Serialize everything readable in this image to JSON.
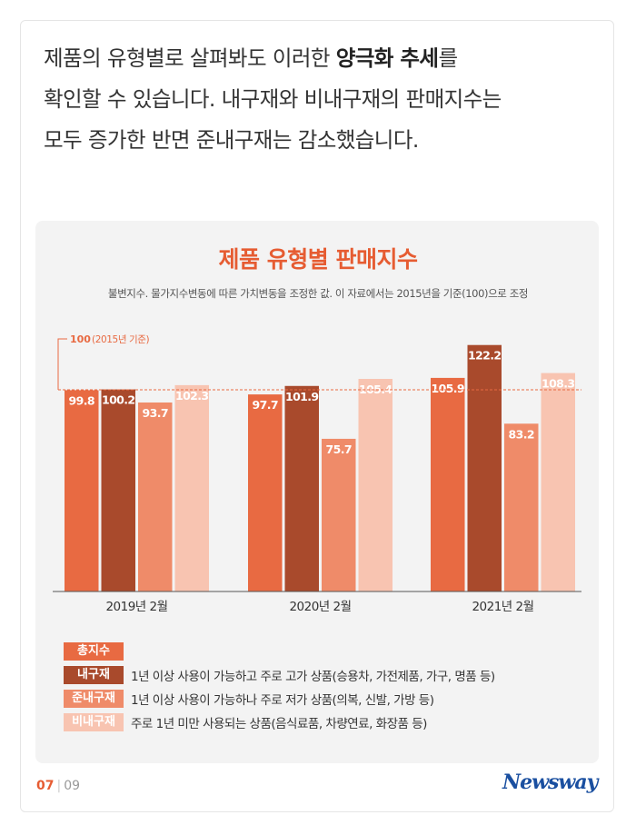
{
  "intro": {
    "line1_pre": "제품의 유형별로 살펴봐도 이러한 ",
    "line1_bold": "양극화 추세",
    "line1_post": "를",
    "line2": "확인할 수 있습니다. 내구재와 비내구재의 판매지수는",
    "line3": "모두 증가한 반면 준내구재는 감소했습니다."
  },
  "chart_data": {
    "type": "bar",
    "title": "제품 유형별 판매지수",
    "subtitle": "불변지수. 물가지수변동에 따른 가치변동을 조정한 값. 이 자료에서는 2015년을 기준(100)으로 조정",
    "categories": [
      "2019년 2월",
      "2020년 2월",
      "2021년 2월"
    ],
    "series": [
      {
        "name": "총지수",
        "color": "#e86a42",
        "values": [
          99.8,
          97.7,
          105.9
        ],
        "labels": [
          "99.8",
          "97.7",
          "105.9"
        ]
      },
      {
        "name": "내구재",
        "color": "#a94a2c",
        "values": [
          100.2,
          101.9,
          122.2
        ],
        "labels": [
          "100.2",
          "101.9",
          "122.2"
        ]
      },
      {
        "name": "준내구재",
        "color": "#ef8b69",
        "values": [
          93.7,
          75.7,
          83.2
        ],
        "labels": [
          "93.7",
          "75.7",
          "83.2"
        ]
      },
      {
        "name": "비내구재",
        "color": "#f8c4b1",
        "values": [
          102.3,
          105.4,
          108.3
        ],
        "labels": [
          "102.3",
          "105.4",
          "108.3"
        ]
      }
    ],
    "reference": {
      "value": 100,
      "label": "100",
      "note": "(2015년 기준)",
      "color": "#e86a42"
    },
    "ylim": [
      0,
      130
    ],
    "grid": false,
    "legend": "bottom-left"
  },
  "legend": [
    {
      "name": "총지수",
      "color": "#e86a42",
      "desc": ""
    },
    {
      "name": "내구재",
      "color": "#a94a2c",
      "desc": "1년 이상 사용이 가능하고 주로 고가 상품(승용차, 가전제품, 가구, 명품 등)"
    },
    {
      "name": "준내구재",
      "color": "#ef8b69",
      "desc": "1년 이상 사용이 가능하나 주로 저가 상품(의복, 신발, 가방 등)"
    },
    {
      "name": "비내구재",
      "color": "#f8c4b1",
      "desc": "주로 1년 미만 사용되는 상품(음식료품, 차량연료, 화장품 등)"
    }
  ],
  "footer": {
    "page_current": "07",
    "separator": "|",
    "page_total": "09",
    "logo": "Newsway"
  }
}
